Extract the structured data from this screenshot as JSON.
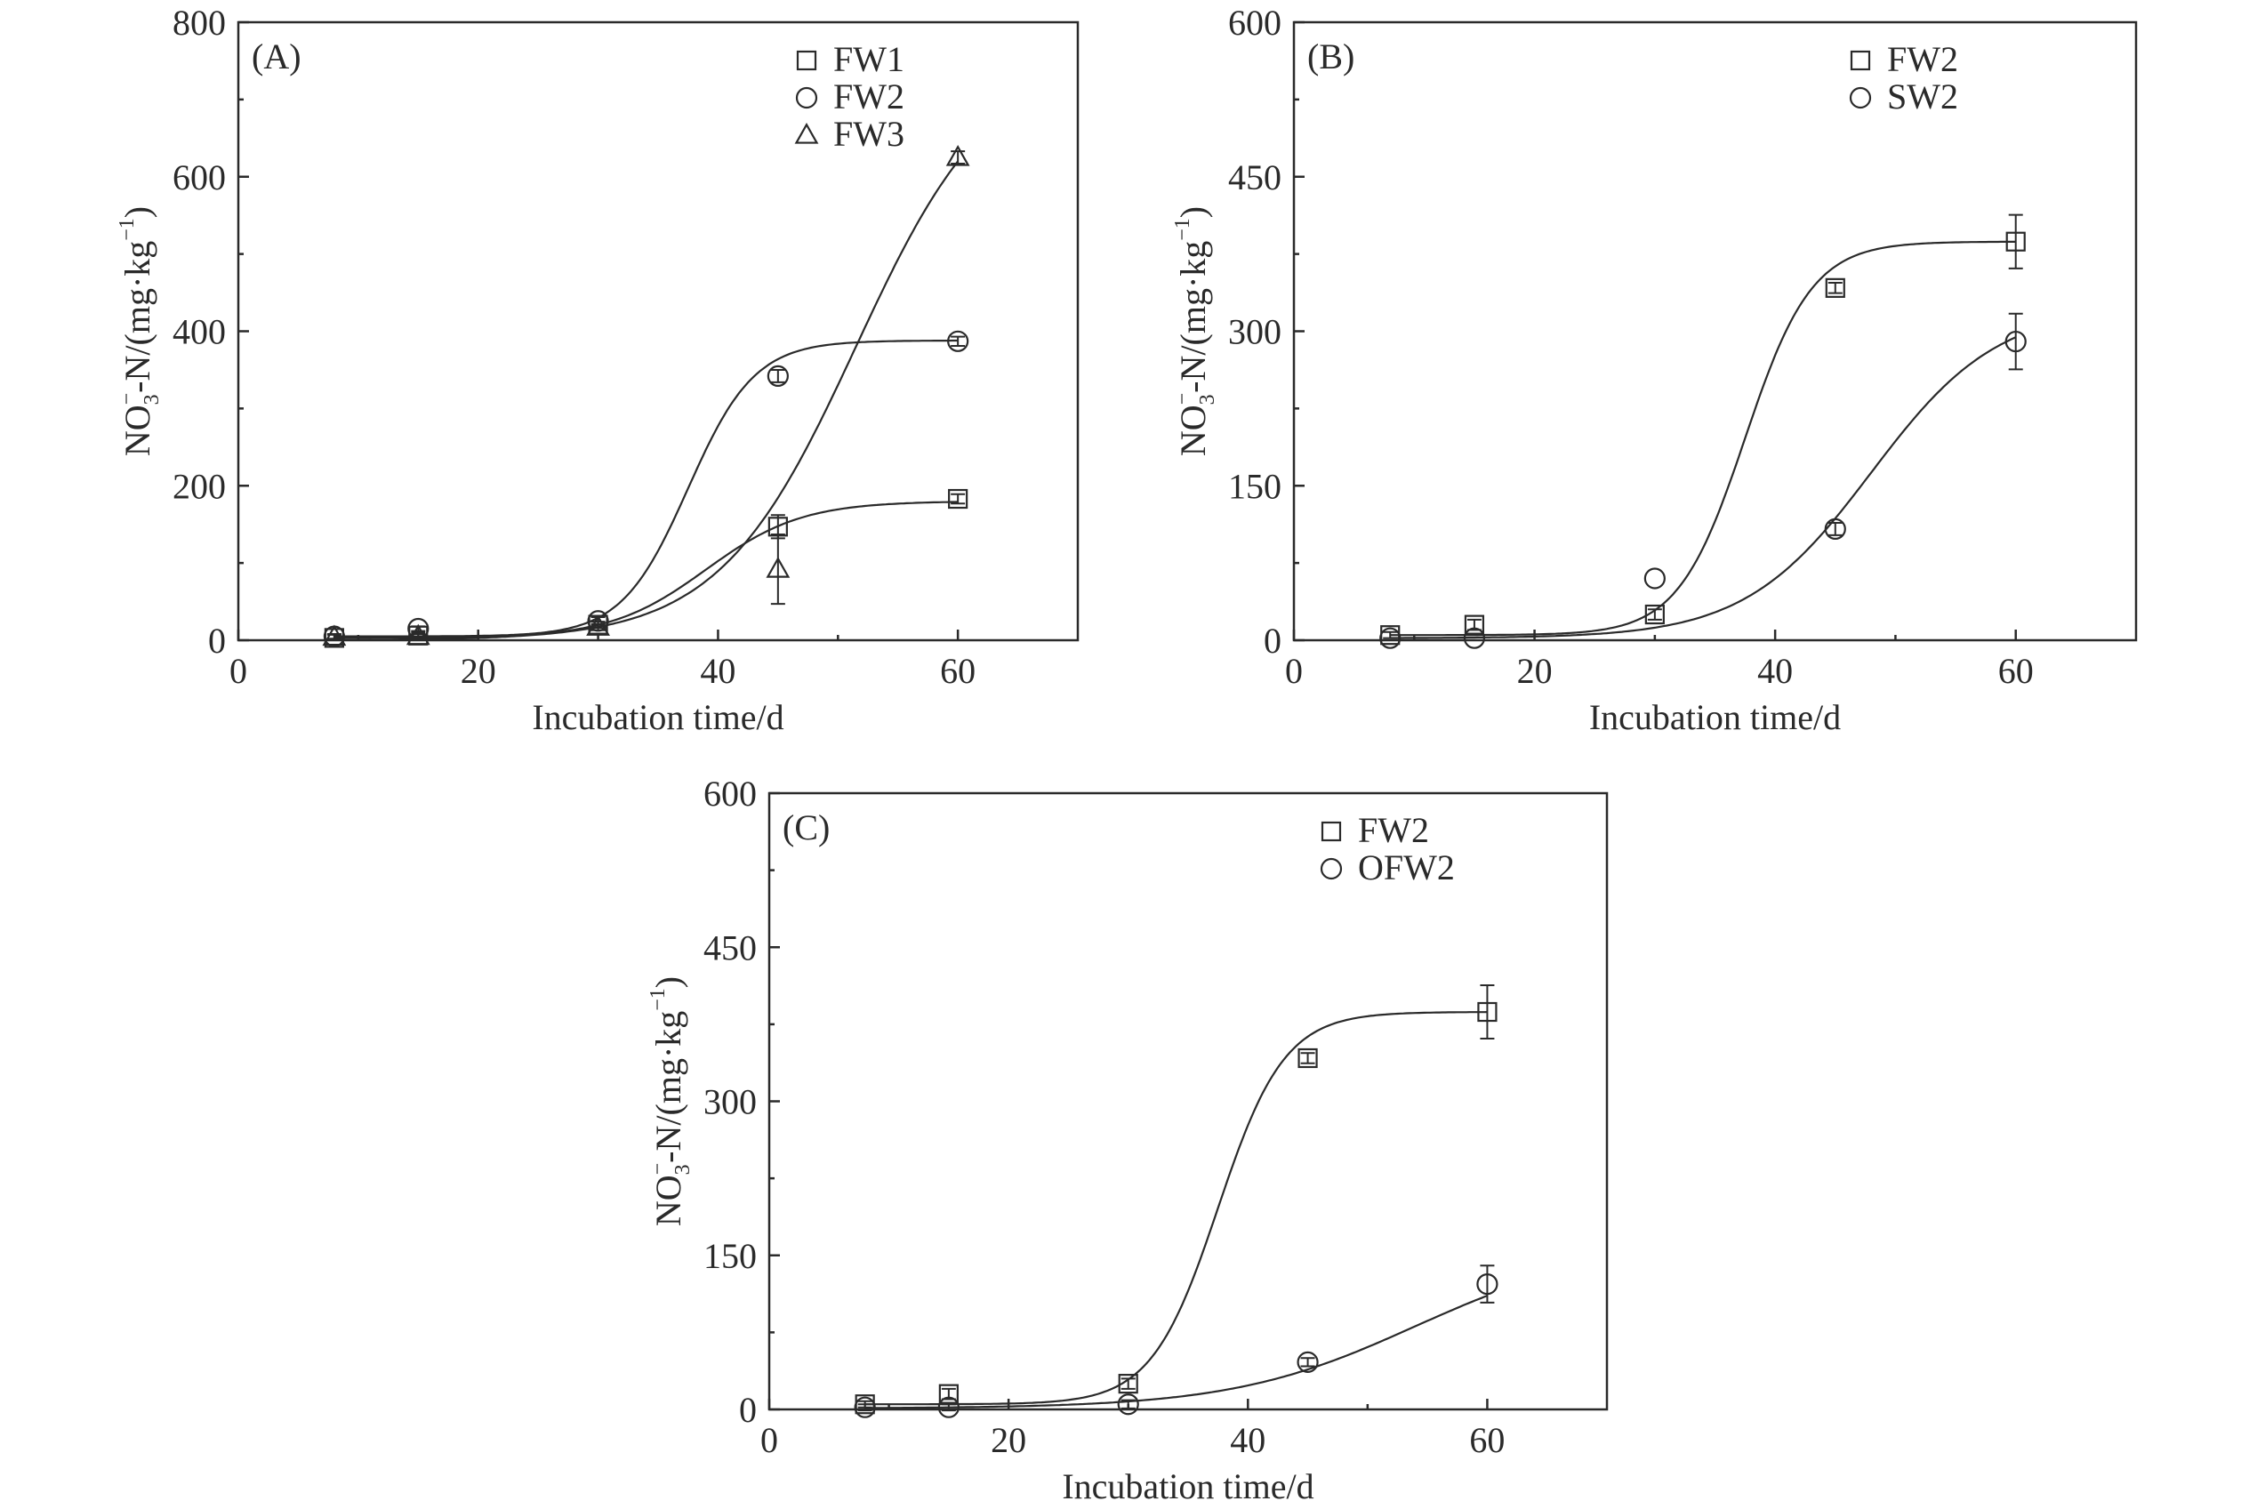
{
  "chart_data": [
    {
      "type": "scatter",
      "panel_label": "(A)",
      "xlabel": "Incubation time/d",
      "ylabel": "NO3⁻-N/(mg·kg⁻¹)",
      "ylabel_parts": {
        "main": "NO",
        "sub": "3",
        "sup1": "−",
        "mid": "-N/(mg·kg",
        "sup2": "−1",
        "end": ")"
      },
      "xlim": [
        0,
        70
      ],
      "ylim": [
        0,
        800
      ],
      "xticks": [
        0,
        20,
        40,
        60
      ],
      "yticks": [
        0,
        200,
        400,
        600,
        800
      ],
      "legend_position": "top-right",
      "series": [
        {
          "name": "FW1",
          "marker": "square",
          "points": [
            {
              "x": 8,
              "y": 3,
              "err": 0
            },
            {
              "x": 15,
              "y": 6,
              "err": 4
            },
            {
              "x": 30,
              "y": 20,
              "err": 4
            },
            {
              "x": 45,
              "y": 147,
              "err": 15
            },
            {
              "x": 60,
              "y": 183,
              "err": 6
            }
          ],
          "fit": {
            "base": 3,
            "amplitude": 177,
            "midpoint": 39,
            "rate": 0.25
          }
        },
        {
          "name": "FW2",
          "marker": "circle",
          "points": [
            {
              "x": 8,
              "y": 5,
              "err": 3
            },
            {
              "x": 15,
              "y": 15,
              "err": 3
            },
            {
              "x": 30,
              "y": 25,
              "err": 5
            },
            {
              "x": 45,
              "y": 342,
              "err": 8
            },
            {
              "x": 60,
              "y": 387,
              "err": 6
            }
          ],
          "fit": {
            "base": 5,
            "amplitude": 383,
            "midpoint": 37.5,
            "rate": 0.36
          }
        },
        {
          "name": "FW3",
          "marker": "triangle",
          "points": [
            {
              "x": 8,
              "y": 4,
              "err": 3
            },
            {
              "x": 15,
              "y": 5,
              "err": 3
            },
            {
              "x": 30,
              "y": 17,
              "err": 4
            },
            {
              "x": 45,
              "y": 92,
              "err": 45
            },
            {
              "x": 60,
              "y": 625,
              "err": 8
            }
          ],
          "fit": {
            "base": 0,
            "amplitude": 760,
            "midpoint": 51.5,
            "rate": 0.175
          }
        }
      ]
    },
    {
      "type": "scatter",
      "panel_label": "(B)",
      "xlabel": "Incubation time/d",
      "ylabel": "NO3⁻-N/(mg·kg⁻¹)",
      "ylabel_parts": {
        "main": "NO",
        "sub": "3",
        "sup1": "−",
        "mid": "-N/(mg·kg",
        "sup2": "−1",
        "end": ")"
      },
      "xlim": [
        0,
        70
      ],
      "ylim": [
        0,
        600
      ],
      "xticks": [
        0,
        20,
        40,
        60
      ],
      "yticks": [
        0,
        150,
        300,
        450,
        600
      ],
      "legend_position": "top-right",
      "series": [
        {
          "name": "FW2",
          "marker": "square",
          "points": [
            {
              "x": 8,
              "y": 5,
              "err": 3
            },
            {
              "x": 15,
              "y": 15,
              "err": 5
            },
            {
              "x": 30,
              "y": 25,
              "err": 5
            },
            {
              "x": 45,
              "y": 342,
              "err": 5
            },
            {
              "x": 60,
              "y": 387,
              "err": 26
            }
          ],
          "fit": {
            "base": 5,
            "amplitude": 382,
            "midpoint": 37.5,
            "rate": 0.36
          }
        },
        {
          "name": "SW2",
          "marker": "circle",
          "points": [
            {
              "x": 8,
              "y": 2,
              "err": 0
            },
            {
              "x": 15,
              "y": 2,
              "err": 0
            },
            {
              "x": 30,
              "y": 60,
              "err": 0
            },
            {
              "x": 45,
              "y": 108,
              "err": 6
            },
            {
              "x": 60,
              "y": 290,
              "err": 27
            }
          ],
          "fit": {
            "base": 2,
            "amplitude": 322,
            "midpoint": 48,
            "rate": 0.19
          }
        }
      ]
    },
    {
      "type": "scatter",
      "panel_label": "(C)",
      "xlabel": "Incubation time/d",
      "ylabel": "NO3⁻-N/(mg·kg⁻¹)",
      "ylabel_parts": {
        "main": "NO",
        "sub": "3",
        "sup1": "−",
        "mid": "-N/(mg·kg",
        "sup2": "−1",
        "end": ")"
      },
      "xlim": [
        0,
        70
      ],
      "ylim": [
        0,
        600
      ],
      "xticks": [
        0,
        20,
        40,
        60
      ],
      "yticks": [
        0,
        150,
        300,
        450,
        600
      ],
      "legend_position": "top-right",
      "series": [
        {
          "name": "FW2",
          "marker": "square",
          "points": [
            {
              "x": 8,
              "y": 5,
              "err": 3
            },
            {
              "x": 15,
              "y": 15,
              "err": 5
            },
            {
              "x": 30,
              "y": 25,
              "err": 5
            },
            {
              "x": 45,
              "y": 342,
              "err": 5
            },
            {
              "x": 60,
              "y": 387,
              "err": 26
            }
          ],
          "fit": {
            "base": 5,
            "amplitude": 382,
            "midpoint": 37.5,
            "rate": 0.36
          }
        },
        {
          "name": "OFW2",
          "marker": "circle",
          "points": [
            {
              "x": 8,
              "y": 2,
              "err": 3
            },
            {
              "x": 15,
              "y": 2,
              "err": 3
            },
            {
              "x": 30,
              "y": 5,
              "err": 4
            },
            {
              "x": 45,
              "y": 46,
              "err": 4
            },
            {
              "x": 60,
              "y": 122,
              "err": 18
            }
          ],
          "fit": {
            "base": 1,
            "amplitude": 160,
            "midpoint": 54,
            "rate": 0.13
          }
        }
      ]
    }
  ]
}
